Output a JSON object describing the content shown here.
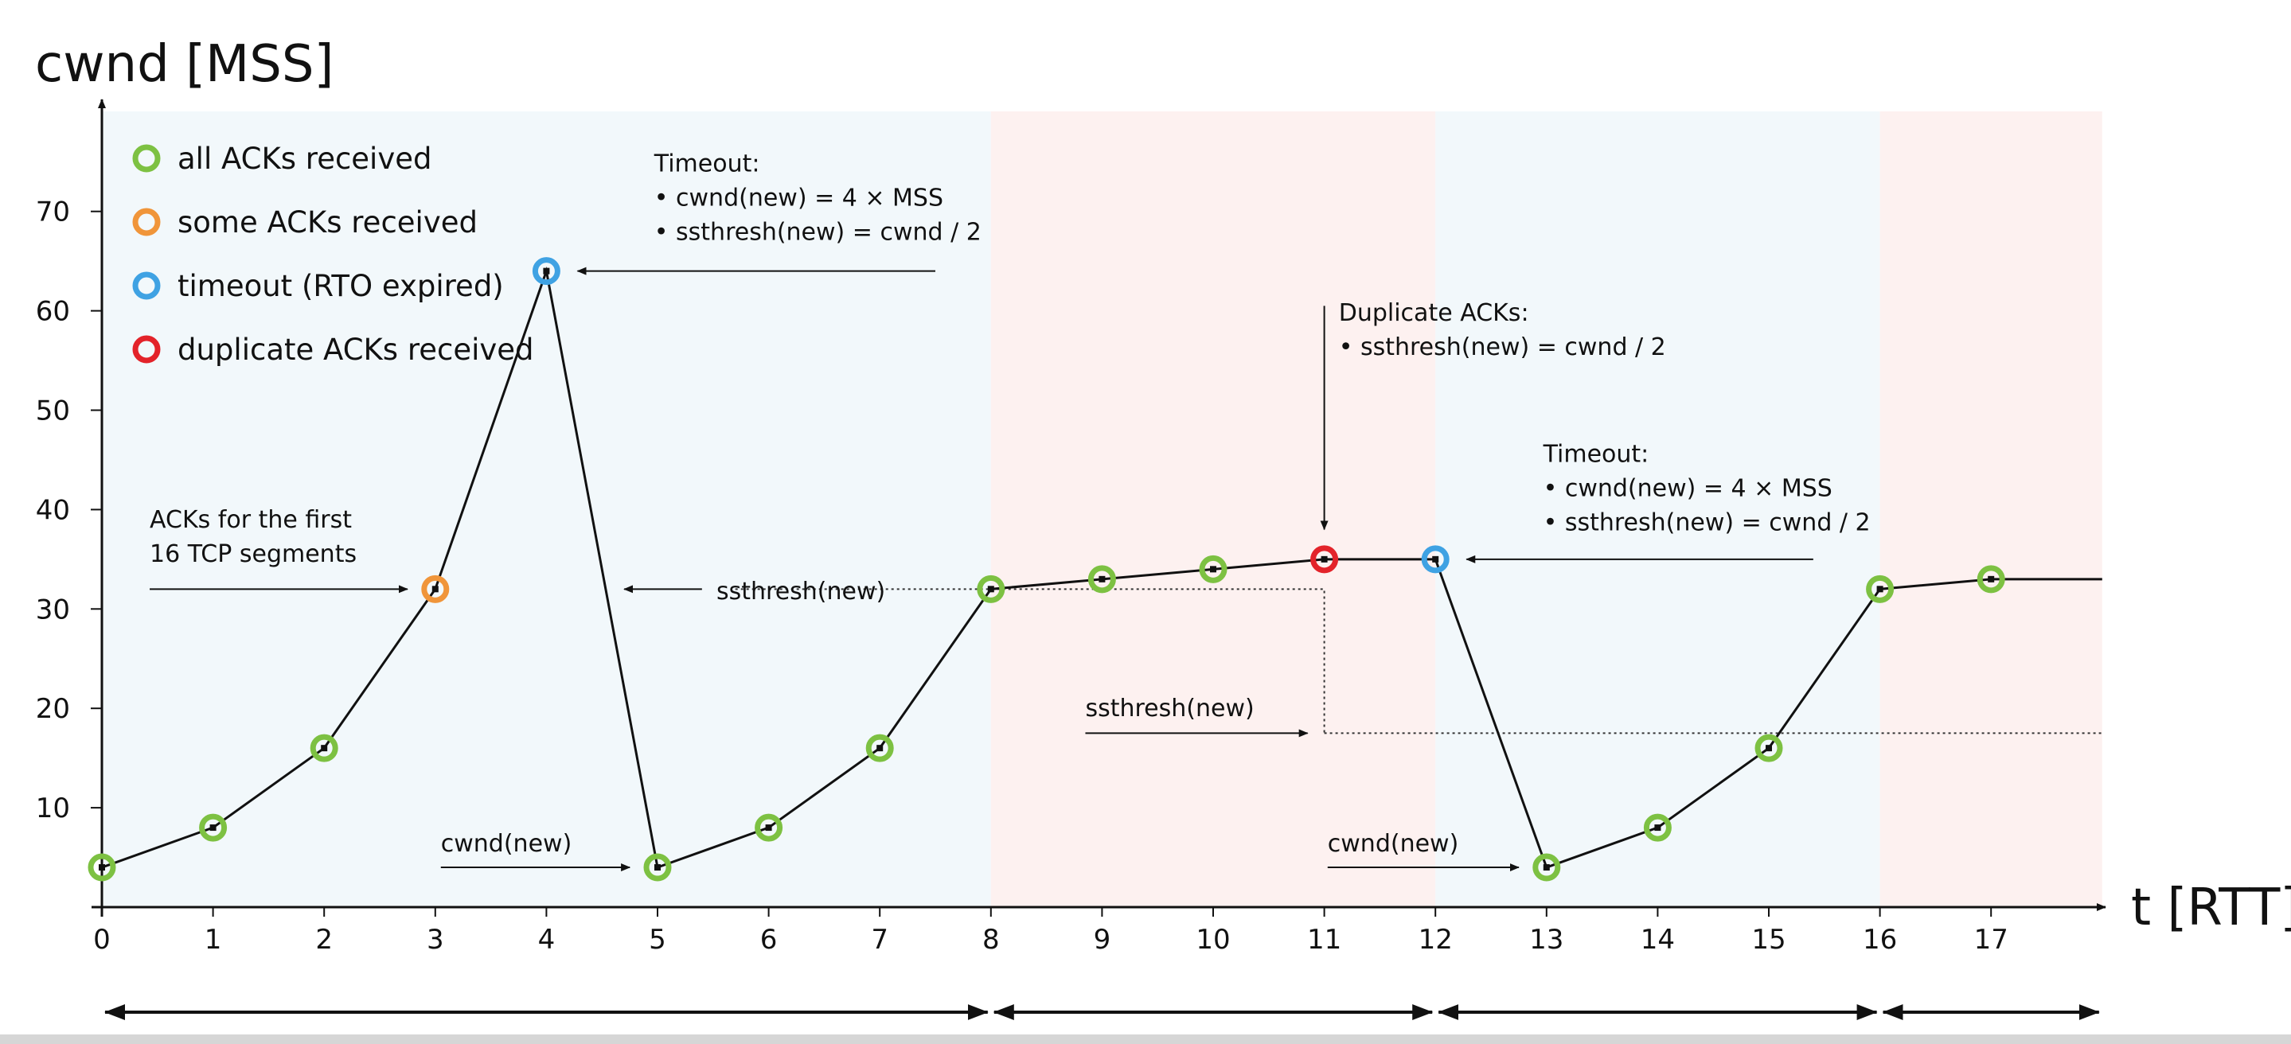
{
  "chart_data": {
    "type": "line",
    "xlabel": "t [RTT]",
    "ylabel": "cwnd [MSS]",
    "xlim": [
      0,
      18
    ],
    "ylim": [
      0,
      80
    ],
    "x_ticks": [
      0,
      1,
      2,
      3,
      4,
      5,
      6,
      7,
      8,
      9,
      10,
      11,
      12,
      13,
      14,
      15,
      16,
      17
    ],
    "y_ticks": [
      10,
      20,
      30,
      40,
      50,
      60,
      70
    ],
    "grid": false,
    "legend_placement": "top-left",
    "status_colors": {
      "all": "#7dc142",
      "some": "#f0953a",
      "timeout": "#3fa2e3",
      "dup": "#e3232a"
    },
    "legend": [
      {
        "status": "all",
        "label": "all ACKs received"
      },
      {
        "status": "some",
        "label": "some ACKs received"
      },
      {
        "status": "timeout",
        "label": "timeout (RTO expired)"
      },
      {
        "status": "dup",
        "label": "duplicate ACKs received"
      }
    ],
    "series": [
      {
        "points": [
          {
            "x": 0,
            "y": 4,
            "status": "all"
          },
          {
            "x": 1,
            "y": 8,
            "status": "all"
          },
          {
            "x": 2,
            "y": 16,
            "status": "all"
          },
          {
            "x": 3,
            "y": 32,
            "status": "some"
          },
          {
            "x": 4,
            "y": 64,
            "status": "timeout"
          },
          {
            "x": 5,
            "y": 4,
            "status": "all"
          },
          {
            "x": 6,
            "y": 8,
            "status": "all"
          },
          {
            "x": 7,
            "y": 16,
            "status": "all"
          },
          {
            "x": 8,
            "y": 32,
            "status": "all"
          },
          {
            "x": 9,
            "y": 33,
            "status": "all"
          },
          {
            "x": 10,
            "y": 34,
            "status": "all"
          },
          {
            "x": 11,
            "y": 35,
            "status": "dup"
          },
          {
            "x": 12,
            "y": 35,
            "status": "timeout"
          },
          {
            "x": 13,
            "y": 4,
            "status": "all"
          },
          {
            "x": 14,
            "y": 8,
            "status": "all"
          },
          {
            "x": 15,
            "y": 16,
            "status": "all"
          },
          {
            "x": 16,
            "y": 32,
            "status": "all"
          },
          {
            "x": 17,
            "y": 33,
            "status": "all"
          }
        ],
        "continues_to_x": 18
      }
    ],
    "phases": [
      {
        "from": 0,
        "to": 8,
        "color": "#f2f8fb"
      },
      {
        "from": 8,
        "to": 12,
        "color": "#fdf1f0"
      },
      {
        "from": 12,
        "to": 16,
        "color": "#f2f8fb"
      },
      {
        "from": 16,
        "to": 18,
        "color": "#fdf1f0"
      }
    ],
    "ssthresh_lines": [
      {
        "y": 32,
        "from": 5.7,
        "to": 8,
        "drop_at": 11,
        "drop_to": 17.5
      },
      {
        "y": 17.5,
        "from": 11,
        "to": 18
      }
    ],
    "annotations": [
      {
        "lines": [
          "Timeout:",
          "• cwnd(new) = 4 × MSS",
          "• ssthresh(new) = cwnd / 2"
        ],
        "text_x": 4.97,
        "text_y": 74.0,
        "arrow": {
          "x1": 7.5,
          "y1": 64,
          "x2": 4.28,
          "y2": 64
        }
      },
      {
        "lines": [
          "ACKs for the first",
          "16 TCP segments"
        ],
        "text_x": 0.43,
        "text_y": 38.2,
        "arrow": {
          "x1": 0.43,
          "y1": 32,
          "x2": 2.75,
          "y2": 32
        }
      },
      {
        "lines": [
          "ssthresh(new)"
        ],
        "text_x": 5.53,
        "text_y": 31.0,
        "arrow": {
          "x1": 5.4,
          "y1": 32,
          "x2": 4.7,
          "y2": 32
        }
      },
      {
        "lines": [
          "cwnd(new)"
        ],
        "text_x": 3.05,
        "text_y": 5.6,
        "arrow": {
          "x1": 3.05,
          "y1": 4,
          "x2": 4.75,
          "y2": 4
        }
      },
      {
        "lines": [
          "Duplicate ACKs:",
          "• ssthresh(new) = cwnd / 2"
        ],
        "text_x": 11.13,
        "text_y": 59.0,
        "arrow": {
          "x1": 11.0,
          "y1": 60.5,
          "x2": 11.0,
          "y2": 38.0
        }
      },
      {
        "lines": [
          "Timeout:",
          "• cwnd(new) = 4 × MSS",
          "• ssthresh(new) = cwnd / 2"
        ],
        "text_x": 12.97,
        "text_y": 44.8,
        "arrow": {
          "x1": 15.4,
          "y1": 35,
          "x2": 12.28,
          "y2": 35
        }
      },
      {
        "lines": [
          "ssthresh(new)"
        ],
        "text_x": 8.85,
        "text_y": 19.2,
        "arrow": {
          "x1": 8.85,
          "y1": 17.5,
          "x2": 10.85,
          "y2": 17.5
        }
      },
      {
        "lines": [
          "cwnd(new)"
        ],
        "text_x": 11.03,
        "text_y": 5.6,
        "arrow": {
          "x1": 11.03,
          "y1": 4,
          "x2": 12.75,
          "y2": 4
        }
      }
    ]
  }
}
